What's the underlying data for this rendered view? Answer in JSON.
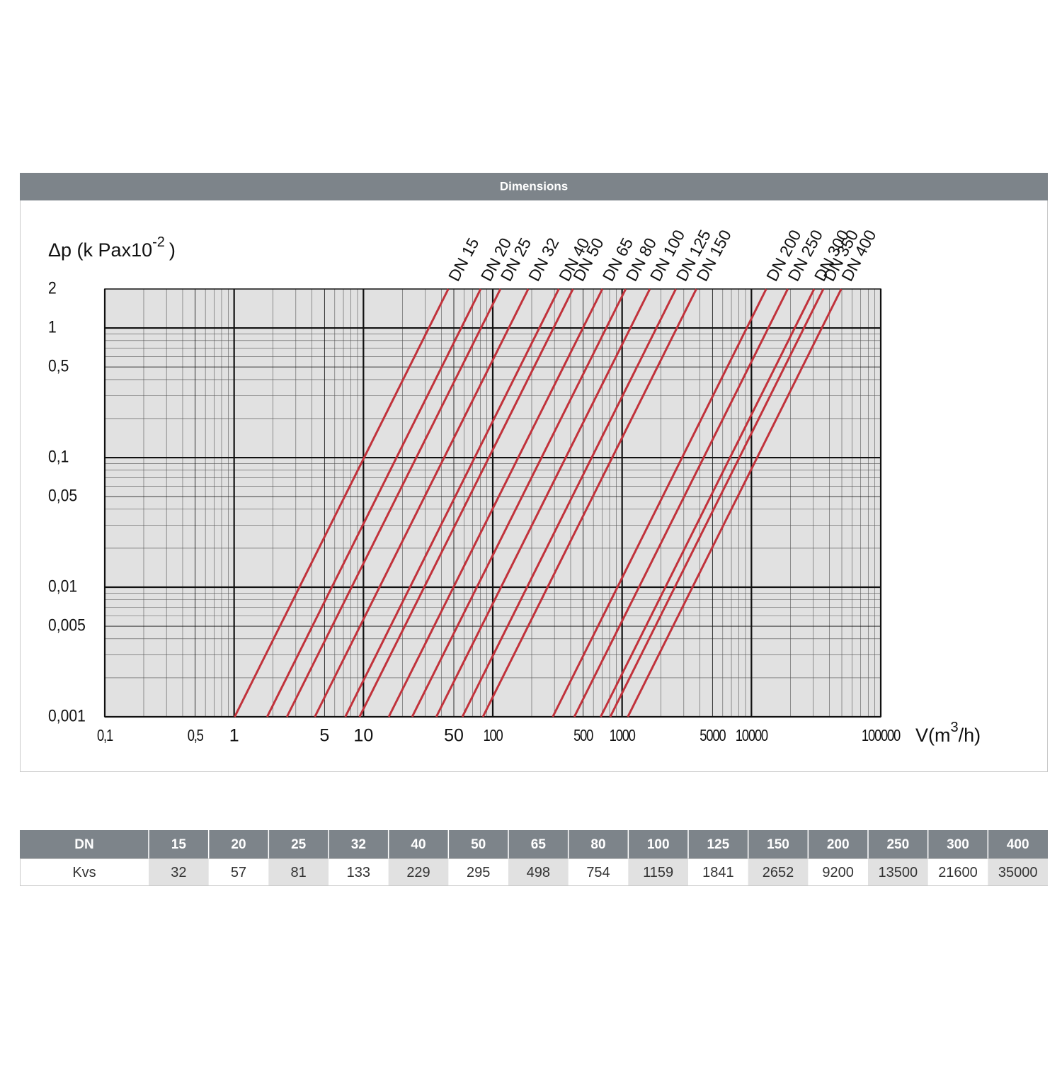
{
  "header": {
    "title": "Dimensions"
  },
  "chart_data": {
    "type": "line",
    "log_x": true,
    "log_y": true,
    "grid": true,
    "minor_grid": true,
    "y_label": "Δp (k Pax10",
    "y_label_sup": "-2",
    "y_label_end": ")",
    "x_label": "V(m",
    "x_label_sup": "3",
    "x_label_end": "/h)",
    "xlim": [
      0.1,
      100000
    ],
    "ylim": [
      0.001,
      2
    ],
    "xticks": [
      {
        "value": 0.1,
        "label": "0,1"
      },
      {
        "value": 0.5,
        "label": "0,5"
      },
      1,
      5,
      10,
      50,
      100,
      500,
      1000,
      5000,
      10000,
      100000
    ],
    "yticks": [
      2,
      1,
      {
        "value": 0.5,
        "label": "0,5"
      },
      {
        "value": 0.1,
        "label": "0,1"
      },
      {
        "value": 0.05,
        "label": "0,05"
      },
      {
        "value": 0.01,
        "label": "0,01"
      },
      {
        "value": 0.005,
        "label": "0,005"
      },
      {
        "value": 0.001,
        "label": "0,001"
      }
    ],
    "series": [
      {
        "name": "DN 15",
        "color": "#c1323b",
        "x": [
          1.01,
          45.3
        ],
        "values": [
          0.001,
          2
        ]
      },
      {
        "name": "DN 20",
        "color": "#c1323b",
        "x": [
          1.8,
          80.6
        ],
        "values": [
          0.001,
          2
        ]
      },
      {
        "name": "DN 25",
        "color": "#c1323b",
        "x": [
          2.56,
          114.6
        ],
        "values": [
          0.001,
          2
        ]
      },
      {
        "name": "DN 32",
        "color": "#c1323b",
        "x": [
          4.21,
          188
        ],
        "values": [
          0.001,
          2
        ]
      },
      {
        "name": "DN 40",
        "color": "#c1323b",
        "x": [
          7.24,
          324
        ],
        "values": [
          0.001,
          2
        ]
      },
      {
        "name": "DN 50",
        "color": "#c1323b",
        "x": [
          9.33,
          417
        ],
        "values": [
          0.001,
          2
        ]
      },
      {
        "name": "DN 65",
        "color": "#c1323b",
        "x": [
          15.7,
          704
        ],
        "values": [
          0.001,
          2
        ]
      },
      {
        "name": "DN 80",
        "color": "#c1323b",
        "x": [
          23.8,
          1066
        ],
        "values": [
          0.001,
          2
        ]
      },
      {
        "name": "DN 100",
        "color": "#c1323b",
        "x": [
          36.6,
          1639
        ],
        "values": [
          0.001,
          2
        ]
      },
      {
        "name": "DN 125",
        "color": "#c1323b",
        "x": [
          58.2,
          2604
        ],
        "values": [
          0.001,
          2
        ]
      },
      {
        "name": "DN 150",
        "color": "#c1323b",
        "x": [
          83.9,
          3750
        ],
        "values": [
          0.001,
          2
        ]
      },
      {
        "name": "DN 200",
        "color": "#c1323b",
        "x": [
          291,
          13011
        ],
        "values": [
          0.001,
          2
        ]
      },
      {
        "name": "DN 250",
        "color": "#c1323b",
        "x": [
          427,
          19092
        ],
        "values": [
          0.001,
          2
        ]
      },
      {
        "name": "DN 300",
        "color": "#c1323b",
        "x": [
          683,
          30547
        ],
        "values": [
          0.001,
          2
        ]
      },
      {
        "name": "DN 350",
        "color": "#c1323b",
        "x": [
          810,
          36000
        ],
        "values": [
          0.001,
          2
        ]
      },
      {
        "name": "DN 400",
        "color": "#c1323b",
        "x": [
          1107,
          49497
        ],
        "values": [
          0.001,
          2
        ]
      }
    ]
  },
  "table": {
    "header": [
      "DN",
      15,
      20,
      25,
      32,
      40,
      50,
      65,
      80,
      100,
      125,
      150,
      200,
      250,
      300,
      400
    ],
    "rows": [
      [
        "Kvs",
        32,
        57,
        81,
        133,
        229,
        295,
        498,
        754,
        1159,
        1841,
        2652,
        9200,
        13500,
        21600,
        35000
      ]
    ]
  }
}
